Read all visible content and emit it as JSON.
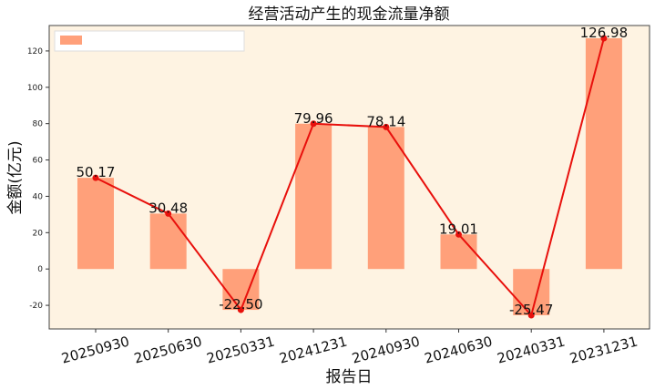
{
  "chart_data": {
    "type": "bar",
    "title": "经营活动产生的现金流量净额",
    "xlabel": "报告日",
    "ylabel": "金额(亿元)",
    "categories": [
      "20250930",
      "20250630",
      "20250331",
      "20241231",
      "20240930",
      "20240630",
      "20240331",
      "20231231"
    ],
    "values": [
      50.17,
      30.48,
      -22.5,
      79.96,
      78.14,
      19.01,
      -25.47,
      126.98
    ],
    "data_labels": [
      "50.17",
      "30.48",
      "-22.50",
      "79.96",
      "78.14",
      "19.01",
      "-25.47",
      "126.98"
    ],
    "overlay_line": true,
    "ylim": [
      -33,
      134
    ],
    "yticks": [
      -20,
      0,
      20,
      40,
      60,
      80,
      100,
      120
    ],
    "legend": {
      "placement": "top-left",
      "entries": [
        ""
      ]
    },
    "colors": {
      "bar": "#FFA07A",
      "line": "#E8100C",
      "plot_bg": "#FEF3E2",
      "legend_bg": "#FFFFFF"
    }
  }
}
